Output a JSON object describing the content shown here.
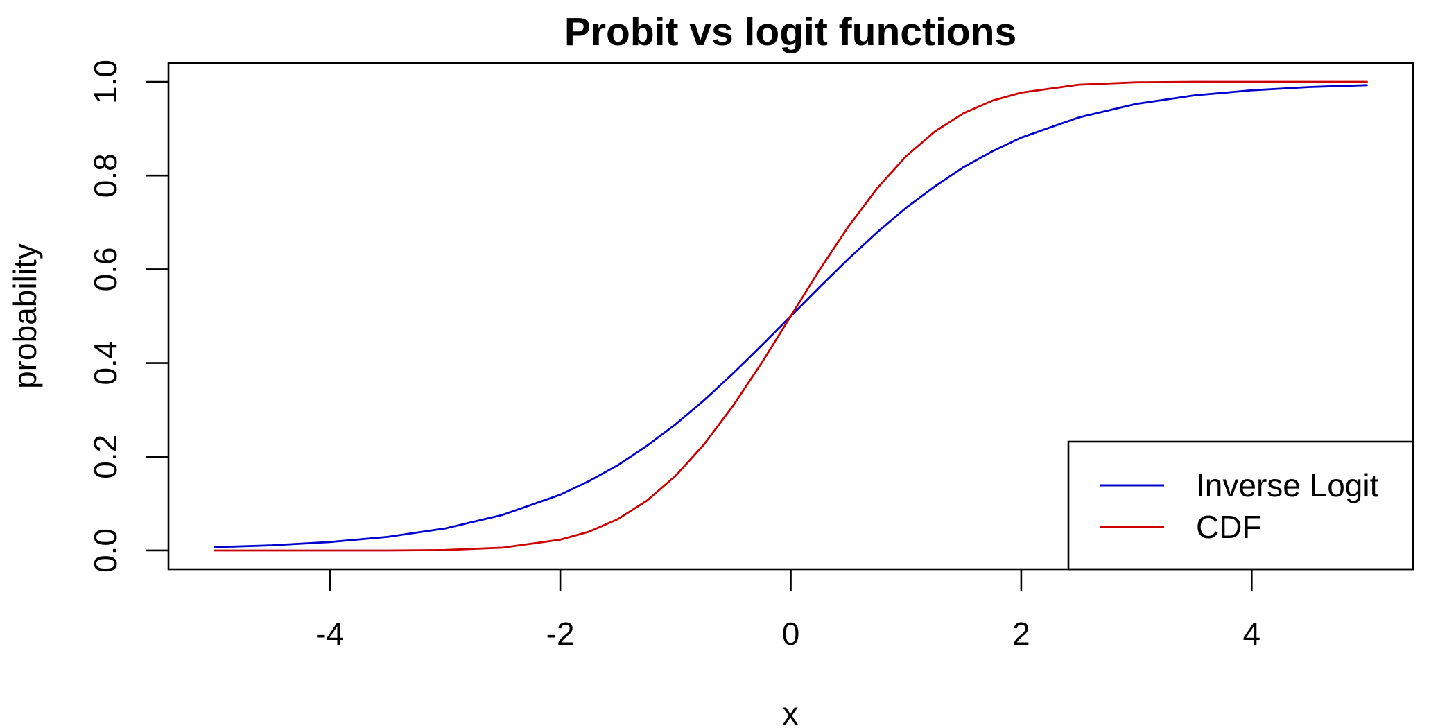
{
  "chart_data": {
    "type": "line",
    "title": "Probit vs logit functions",
    "xlabel": "x",
    "ylabel": "probability",
    "xlim": [
      -5.4,
      5.4
    ],
    "ylim": [
      -0.04,
      1.04
    ],
    "x_ticks": [
      -4,
      -2,
      0,
      2,
      4
    ],
    "x_tick_labels": [
      "-4",
      "-2",
      "0",
      "2",
      "4"
    ],
    "y_ticks": [
      0.0,
      0.2,
      0.4,
      0.6,
      0.8,
      1.0
    ],
    "y_tick_labels": [
      "0.0",
      "0.2",
      "0.4",
      "0.6",
      "0.8",
      "1.0"
    ],
    "grid": false,
    "legend_position": "bottom-right",
    "x": [
      -5.0,
      -4.5,
      -4.0,
      -3.5,
      -3.0,
      -2.5,
      -2.0,
      -1.75,
      -1.5,
      -1.25,
      -1.0,
      -0.75,
      -0.5,
      -0.25,
      0.0,
      0.25,
      0.5,
      0.75,
      1.0,
      1.25,
      1.5,
      1.75,
      2.0,
      2.5,
      3.0,
      3.5,
      4.0,
      4.5,
      5.0
    ],
    "series": [
      {
        "name": "Inverse Logit",
        "color": "#0000cd",
        "values": [
          0.007,
          0.011,
          0.018,
          0.029,
          0.047,
          0.076,
          0.119,
          0.148,
          0.182,
          0.223,
          0.269,
          0.321,
          0.378,
          0.438,
          0.5,
          0.562,
          0.622,
          0.679,
          0.731,
          0.777,
          0.818,
          0.852,
          0.881,
          0.924,
          0.953,
          0.971,
          0.982,
          0.989,
          0.993
        ]
      },
      {
        "name": "CDF",
        "color": "#cd0000",
        "values": [
          0.0,
          0.0,
          0.0,
          0.0,
          0.001,
          0.006,
          0.023,
          0.04,
          0.067,
          0.106,
          0.159,
          0.227,
          0.309,
          0.401,
          0.5,
          0.599,
          0.691,
          0.773,
          0.841,
          0.894,
          0.933,
          0.96,
          0.977,
          0.994,
          0.999,
          1.0,
          1.0,
          1.0,
          1.0
        ]
      }
    ]
  }
}
